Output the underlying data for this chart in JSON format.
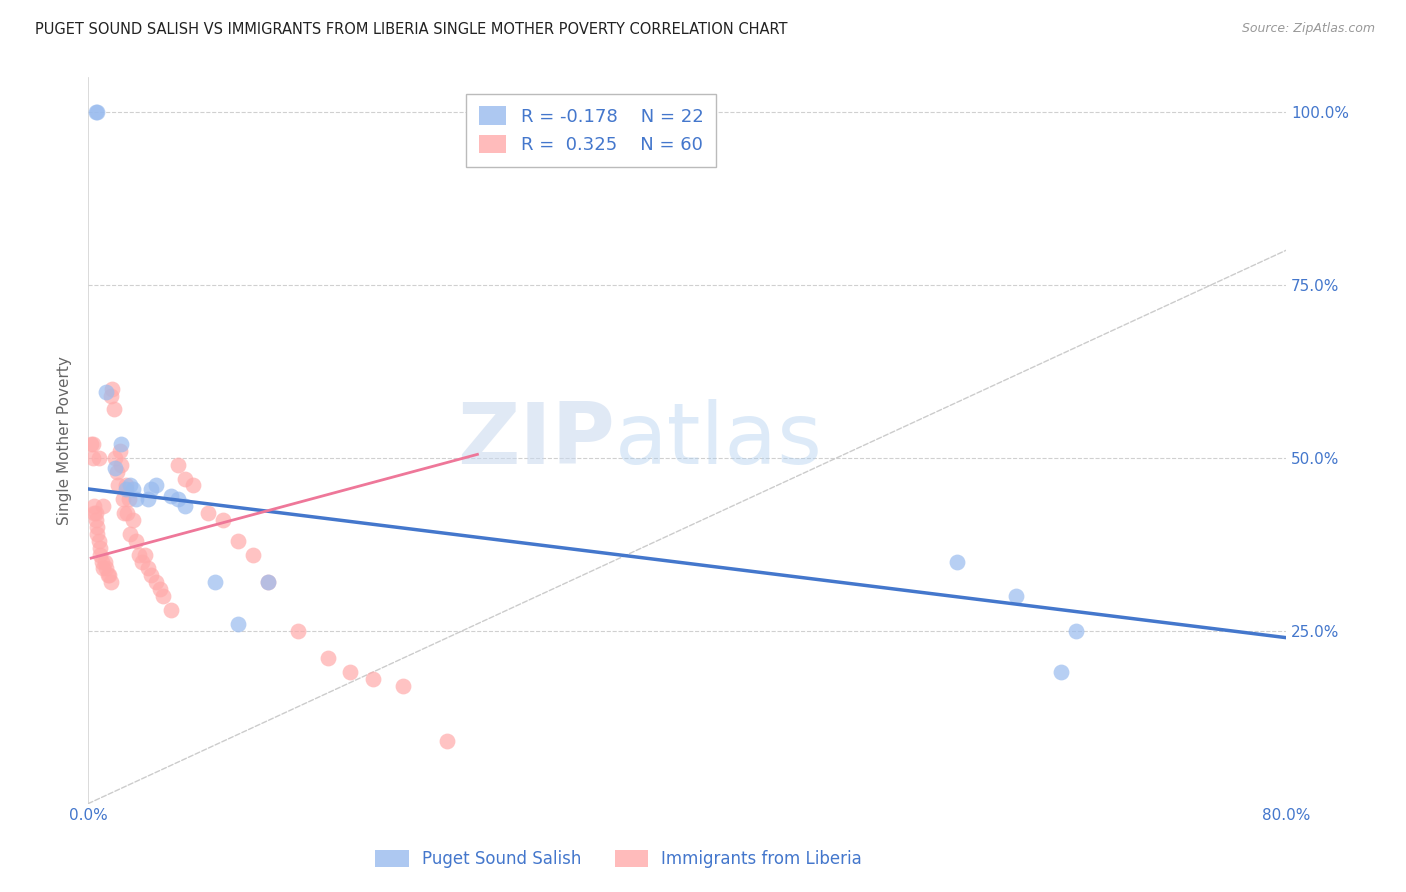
{
  "title": "PUGET SOUND SALISH VS IMMIGRANTS FROM LIBERIA SINGLE MOTHER POVERTY CORRELATION CHART",
  "source": "Source: ZipAtlas.com",
  "ylabel": "Single Mother Poverty",
  "xlim": [
    0.0,
    0.8
  ],
  "ylim": [
    0.0,
    1.05
  ],
  "ytick_positions": [
    0.0,
    0.25,
    0.5,
    0.75,
    1.0
  ],
  "ytick_labels": [
    "",
    "25.0%",
    "50.0%",
    "75.0%",
    "100.0%"
  ],
  "xtick_positions": [
    0.0,
    0.1,
    0.2,
    0.3,
    0.4,
    0.5,
    0.6,
    0.7,
    0.8
  ],
  "xticklabels": [
    "0.0%",
    "",
    "",
    "",
    "",
    "",
    "",
    "",
    "80.0%"
  ],
  "grid_color": "#d0d0d0",
  "background_color": "#ffffff",
  "diagonal_line_color": "#cccccc",
  "blue_color": "#99bbee",
  "pink_color": "#ffaaaa",
  "blue_line_color": "#4477cc",
  "pink_line_color": "#ee7799",
  "legend_R_blue": "-0.178",
  "legend_N_blue": "22",
  "legend_R_pink": "0.325",
  "legend_N_pink": "60",
  "legend_label_blue": "Puget Sound Salish",
  "legend_label_pink": "Immigrants from Liberia",
  "watermark_zip": "ZIP",
  "watermark_atlas": "atlas",
  "blue_scatter_x": [
    0.005,
    0.006,
    0.012,
    0.018,
    0.022,
    0.025,
    0.028,
    0.03,
    0.032,
    0.04,
    0.042,
    0.045,
    0.055,
    0.06,
    0.065,
    0.085,
    0.1,
    0.12,
    0.58,
    0.62,
    0.65,
    0.66
  ],
  "blue_scatter_y": [
    1.0,
    1.0,
    0.595,
    0.485,
    0.52,
    0.455,
    0.46,
    0.455,
    0.44,
    0.44,
    0.455,
    0.46,
    0.445,
    0.44,
    0.43,
    0.32,
    0.26,
    0.32,
    0.35,
    0.3,
    0.19,
    0.25
  ],
  "pink_scatter_x": [
    0.002,
    0.003,
    0.003,
    0.004,
    0.004,
    0.005,
    0.005,
    0.006,
    0.006,
    0.007,
    0.007,
    0.008,
    0.008,
    0.009,
    0.01,
    0.01,
    0.011,
    0.012,
    0.013,
    0.014,
    0.015,
    0.015,
    0.016,
    0.017,
    0.018,
    0.019,
    0.02,
    0.021,
    0.022,
    0.023,
    0.024,
    0.025,
    0.026,
    0.027,
    0.028,
    0.03,
    0.032,
    0.034,
    0.036,
    0.038,
    0.04,
    0.042,
    0.045,
    0.048,
    0.05,
    0.055,
    0.06,
    0.065,
    0.07,
    0.08,
    0.09,
    0.1,
    0.11,
    0.12,
    0.14,
    0.16,
    0.175,
    0.19,
    0.21,
    0.24
  ],
  "pink_scatter_y": [
    0.52,
    0.52,
    0.5,
    0.43,
    0.42,
    0.42,
    0.41,
    0.4,
    0.39,
    0.5,
    0.38,
    0.37,
    0.36,
    0.35,
    0.34,
    0.43,
    0.35,
    0.34,
    0.33,
    0.33,
    0.32,
    0.59,
    0.6,
    0.57,
    0.5,
    0.48,
    0.46,
    0.51,
    0.49,
    0.44,
    0.42,
    0.46,
    0.42,
    0.44,
    0.39,
    0.41,
    0.38,
    0.36,
    0.35,
    0.36,
    0.34,
    0.33,
    0.32,
    0.31,
    0.3,
    0.28,
    0.49,
    0.47,
    0.46,
    0.42,
    0.41,
    0.38,
    0.36,
    0.32,
    0.25,
    0.21,
    0.19,
    0.18,
    0.17,
    0.09
  ],
  "blue_line_x": [
    0.0,
    0.8
  ],
  "blue_line_y": [
    0.455,
    0.24
  ],
  "pink_line_x": [
    0.002,
    0.26
  ],
  "pink_line_y": [
    0.355,
    0.505
  ]
}
